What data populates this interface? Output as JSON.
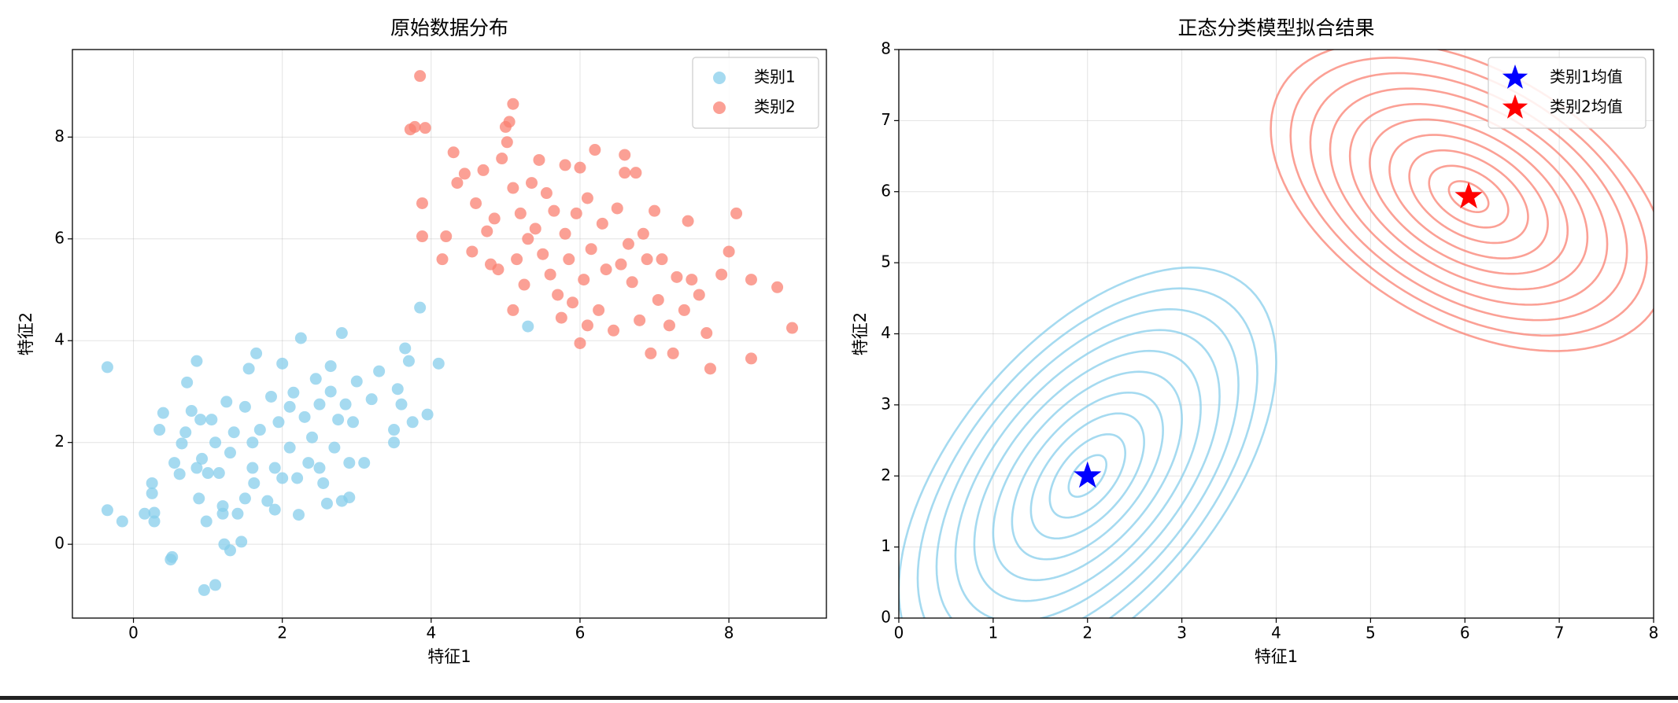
{
  "chart_data": [
    {
      "type": "scatter",
      "title": "原始数据分布",
      "x_label": "特征1",
      "y_label": "特征2",
      "xlim": [
        -0.82,
        9.31
      ],
      "ylim": [
        -1.45,
        9.72
      ],
      "xticks": [
        0,
        2,
        4,
        6,
        8
      ],
      "yticks": [
        0,
        2,
        4,
        6,
        8
      ],
      "grid": true,
      "legend": "upper right",
      "series": [
        {
          "name": "类别1",
          "color": "#87ceeb",
          "x": [
            -0.35,
            -0.35,
            -0.15,
            0.15,
            0.25,
            0.25,
            0.28,
            0.28,
            0.35,
            0.4,
            0.5,
            0.52,
            0.55,
            0.62,
            0.65,
            0.7,
            0.72,
            0.78,
            0.85,
            0.85,
            0.88,
            0.9,
            0.92,
            0.95,
            0.98,
            1.0,
            1.05,
            1.1,
            1.1,
            1.15,
            1.2,
            1.2,
            1.22,
            1.25,
            1.3,
            1.3,
            1.35,
            1.4,
            1.45,
            1.5,
            1.5,
            1.55,
            1.6,
            1.6,
            1.62,
            1.65,
            1.7,
            1.8,
            1.85,
            1.9,
            1.9,
            1.95,
            2.0,
            2.0,
            2.1,
            2.1,
            2.15,
            2.2,
            2.22,
            2.25,
            2.3,
            2.35,
            2.4,
            2.45,
            2.5,
            2.5,
            2.55,
            2.6,
            2.65,
            2.65,
            2.7,
            2.75,
            2.8,
            2.8,
            2.85,
            2.9,
            2.9,
            2.95,
            3.0,
            3.1,
            3.2,
            3.3,
            3.5,
            3.5,
            3.55,
            3.6,
            3.65,
            3.7,
            3.75,
            3.85,
            3.95,
            4.1,
            5.3
          ],
          "values": [
            3.48,
            0.67,
            0.45,
            0.6,
            1.2,
            1.0,
            0.62,
            0.45,
            2.25,
            2.58,
            -0.3,
            -0.25,
            1.6,
            1.38,
            1.98,
            2.2,
            3.18,
            2.62,
            3.6,
            1.5,
            0.9,
            2.45,
            1.68,
            -0.9,
            0.45,
            1.4,
            2.45,
            -0.8,
            2.0,
            1.4,
            0.75,
            0.6,
            0.0,
            2.8,
            -0.12,
            1.8,
            2.2,
            0.6,
            0.05,
            0.9,
            2.7,
            3.45,
            1.5,
            2.0,
            1.2,
            3.75,
            2.25,
            0.85,
            2.9,
            1.5,
            0.68,
            2.4,
            3.55,
            1.3,
            1.9,
            2.7,
            2.98,
            1.3,
            0.58,
            4.05,
            2.5,
            1.6,
            2.1,
            3.25,
            1.5,
            2.75,
            1.2,
            0.8,
            3.0,
            3.5,
            1.9,
            2.45,
            0.85,
            4.15,
            2.75,
            0.92,
            1.6,
            2.4,
            3.2,
            1.6,
            2.85,
            3.4,
            2.0,
            2.25,
            3.05,
            2.75,
            3.85,
            3.6,
            2.4,
            4.65,
            2.55,
            3.55,
            4.28
          ]
        },
        {
          "name": "类别2",
          "color": "#fa8072",
          "x": [
            3.85,
            3.78,
            3.72,
            3.92,
            3.88,
            3.88,
            4.15,
            4.2,
            4.3,
            4.35,
            4.45,
            4.55,
            4.6,
            4.7,
            4.75,
            4.8,
            4.85,
            4.9,
            4.95,
            5.0,
            5.02,
            5.05,
            5.1,
            5.1,
            5.1,
            5.15,
            5.2,
            5.25,
            5.3,
            5.35,
            5.4,
            5.45,
            5.5,
            5.55,
            5.6,
            5.65,
            5.7,
            5.75,
            5.8,
            5.8,
            5.85,
            5.9,
            5.95,
            6.0,
            6.0,
            6.05,
            6.1,
            6.1,
            6.15,
            6.2,
            6.25,
            6.3,
            6.35,
            6.45,
            6.5,
            6.55,
            6.6,
            6.6,
            6.65,
            6.7,
            6.75,
            6.8,
            6.85,
            6.9,
            6.95,
            7.0,
            7.05,
            7.1,
            7.2,
            7.25,
            7.3,
            7.4,
            7.45,
            7.5,
            7.6,
            7.7,
            7.75,
            7.9,
            8.0,
            8.1,
            8.3,
            8.3,
            8.65,
            8.85
          ],
          "values": [
            9.2,
            8.2,
            8.15,
            8.18,
            6.7,
            6.05,
            5.6,
            6.05,
            7.7,
            7.1,
            7.28,
            5.75,
            6.7,
            7.35,
            6.15,
            5.5,
            6.4,
            5.4,
            7.58,
            8.2,
            7.9,
            8.3,
            8.65,
            4.6,
            7.0,
            5.6,
            6.5,
            5.1,
            6.0,
            7.1,
            6.2,
            7.55,
            5.7,
            6.9,
            5.3,
            6.55,
            4.9,
            4.45,
            7.45,
            6.1,
            5.6,
            4.75,
            6.5,
            3.95,
            7.4,
            5.2,
            4.3,
            6.8,
            5.8,
            7.75,
            4.6,
            6.3,
            5.4,
            4.2,
            6.6,
            5.5,
            7.65,
            7.3,
            5.9,
            5.15,
            7.3,
            4.4,
            6.1,
            5.6,
            3.75,
            6.55,
            4.8,
            5.6,
            4.3,
            3.75,
            5.25,
            4.6,
            6.35,
            5.2,
            4.9,
            4.15,
            3.45,
            5.3,
            5.75,
            6.5,
            3.65,
            5.2,
            5.05,
            4.25
          ]
        }
      ]
    },
    {
      "type": "contour",
      "title": "正态分类模型拟合结果",
      "x_label": "特征1",
      "y_label": "特征2",
      "xlim": [
        0,
        8
      ],
      "ylim": [
        0,
        8
      ],
      "xticks": [
        0,
        1,
        2,
        3,
        4,
        5,
        6,
        7,
        8
      ],
      "yticks": [
        0,
        1,
        2,
        3,
        4,
        5,
        6,
        7,
        8
      ],
      "grid": true,
      "legend": "upper right",
      "series": [
        {
          "name": "类别1均值",
          "color": "#0000ff",
          "x": [
            2.0
          ],
          "values": [
            2.0
          ],
          "contour_color": "#87ceeb",
          "covariance": [
            [
              1.0,
              0.8
            ],
            [
              0.8,
              2.15
            ]
          ],
          "levels": [
            0.2,
            0.4,
            0.6,
            0.8,
            1.0,
            1.2,
            1.4,
            1.6,
            1.8,
            2.0
          ]
        },
        {
          "name": "类别2均值",
          "color": "#ff0000",
          "x": [
            6.04
          ],
          "values": [
            5.93
          ],
          "contour_color": "#fa8072",
          "covariance": [
            [
              1.1,
              -0.5
            ],
            [
              -0.5,
              1.18
            ]
          ],
          "levels": [
            0.2,
            0.4,
            0.6,
            0.8,
            1.0,
            1.2,
            1.4,
            1.6,
            1.8,
            2.0
          ]
        }
      ]
    }
  ]
}
